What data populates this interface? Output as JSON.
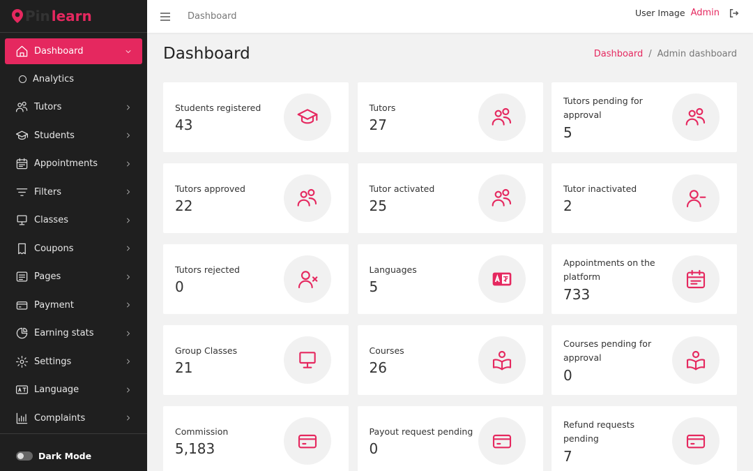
{
  "brand": {
    "first": "Pin",
    "second": "learn"
  },
  "sidebar": {
    "menu": [
      {
        "label": "Dashboard",
        "children": [
          "Analytics"
        ]
      },
      {
        "label": "Tutors"
      },
      {
        "label": "Students"
      },
      {
        "label": "Appointments"
      },
      {
        "label": "Filters"
      },
      {
        "label": "Classes"
      },
      {
        "label": "Coupons"
      },
      {
        "label": "Pages"
      },
      {
        "label": "Payment"
      },
      {
        "label": "Earning stats"
      },
      {
        "label": "Settings"
      },
      {
        "label": "Language"
      },
      {
        "label": "Complaints"
      }
    ],
    "dark_mode": "Dark Mode"
  },
  "topbar": {
    "title": "Dashboard",
    "user_image_alt": "User Image",
    "user": "Admin"
  },
  "page": {
    "title": "Dashboard",
    "breadcrumb": [
      "Dashboard",
      "/",
      "Admin dashboard"
    ]
  },
  "cards": [
    {
      "label": "Students registered",
      "value": 43
    },
    {
      "label": "Tutors",
      "value": 27
    },
    {
      "label": "Tutors pending for approval",
      "value": 5
    },
    {
      "label": "Tutors approved",
      "value": 22
    },
    {
      "label": "Tutor activated",
      "value": 25
    },
    {
      "label": "Tutor inactivated",
      "value": 2
    },
    {
      "label": "Tutors rejected",
      "value": 0
    },
    {
      "label": "Languages",
      "value": 5
    },
    {
      "label": "Appointments on the platform",
      "value": 733
    },
    {
      "label": "Group Classes",
      "value": 21
    },
    {
      "label": "Courses",
      "value": 26
    },
    {
      "label": "Courses pending for approval",
      "value": 0
    },
    {
      "label": "Commission",
      "value": 5183,
      "value_label": "5,183"
    },
    {
      "label": "Payout request pending",
      "value": 0
    },
    {
      "label": "Refund requests pending",
      "value": 7
    }
  ]
}
